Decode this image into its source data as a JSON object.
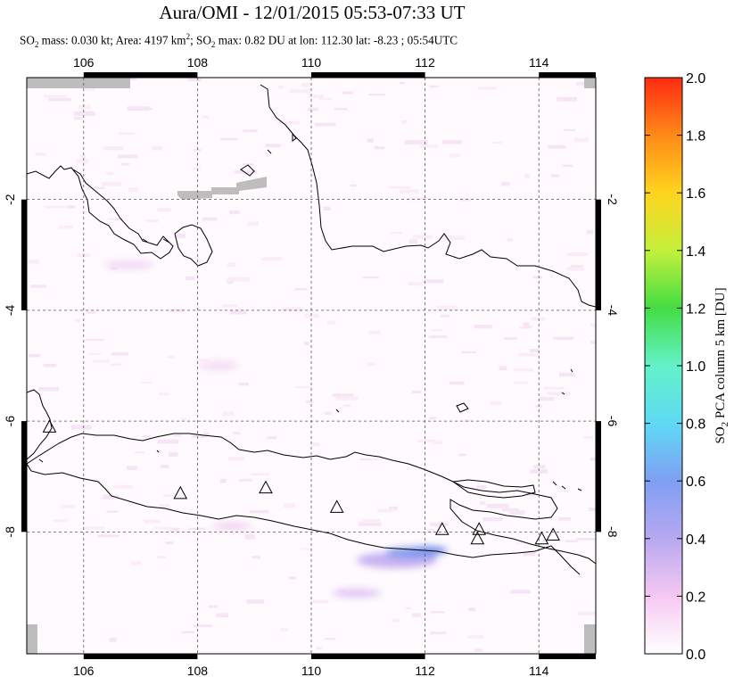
{
  "title": "Aura/OMI - 12/01/2015 05:53-07:33 UT",
  "subtitle": {
    "p1": "SO",
    "p1_sub": "2",
    "p2": " mass: 0.030 kt; Area: 4197 km",
    "p2_sup": "2",
    "p3": "; SO",
    "p3_sub": "2",
    "p4": " max: 0.82 DU at lon: 112.30 lat: -8.23 ; 05:54UTC"
  },
  "map": {
    "lon_ticks": [
      "106",
      "108",
      "110",
      "112",
      "114"
    ],
    "lon_values": [
      106,
      108,
      110,
      112,
      114
    ],
    "lat_ticks": [
      "-2",
      "-4",
      "-6",
      "-8"
    ],
    "lat_values": [
      -2,
      -4,
      -6,
      -8
    ],
    "lon_range": [
      105,
      115
    ],
    "lat_range": [
      -10.2,
      0.2
    ],
    "grid": true
  },
  "volcanoes": [
    {
      "lon": 105.4,
      "lat": -6.1
    },
    {
      "lon": 107.7,
      "lat": -7.3
    },
    {
      "lon": 109.2,
      "lat": -7.2
    },
    {
      "lon": 110.45,
      "lat": -7.55
    },
    {
      "lon": 112.3,
      "lat": -7.95
    },
    {
      "lon": 112.95,
      "lat": -7.95
    },
    {
      "lon": 112.92,
      "lat": -8.12
    },
    {
      "lon": 114.05,
      "lat": -8.12
    },
    {
      "lon": 114.25,
      "lat": -8.05
    }
  ],
  "colorbar": {
    "ticks": [
      "0.0",
      "0.2",
      "0.4",
      "0.6",
      "0.8",
      "1.0",
      "1.2",
      "1.4",
      "1.6",
      "1.8",
      "2.0"
    ],
    "tick_values": [
      0,
      0.2,
      0.4,
      0.6,
      0.8,
      1.0,
      1.2,
      1.4,
      1.6,
      1.8,
      2.0
    ],
    "range": [
      0,
      2.0
    ],
    "label_pre": "SO",
    "label_sub": "2",
    "label_post": " PCA column 5 km [DU]",
    "colors": [
      "#ffffff",
      "#f6c8f2",
      "#b7a8f0",
      "#7f9ff3",
      "#5fd9f5",
      "#63f2c9",
      "#43dd43",
      "#c4f03c",
      "#ffd41e",
      "#ff8a18",
      "#ff2a12"
    ]
  }
}
